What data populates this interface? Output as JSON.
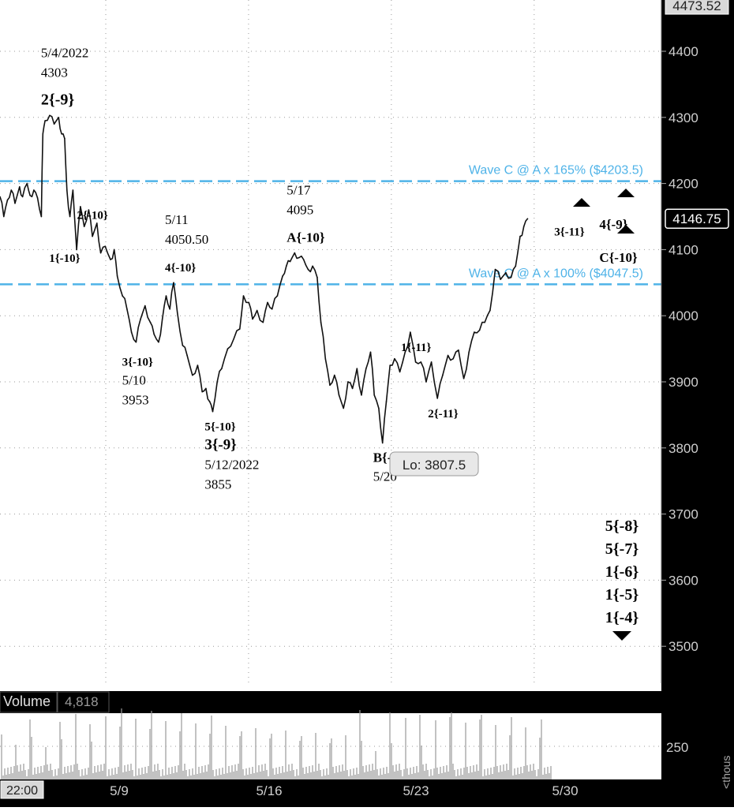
{
  "chart_data": {
    "type": "line",
    "y_axis": {
      "ticks": [
        4400,
        4300,
        4200,
        4100,
        4000,
        3900,
        3800,
        3700,
        3600,
        3500
      ],
      "top_readout": "4473.52",
      "last_price": "4146.75"
    },
    "x_axis": {
      "start_label": "22:00",
      "labels": [
        "5/9",
        "5/16",
        "5/23",
        "5/30"
      ]
    },
    "grid": true,
    "series": [
      {
        "points": [
          [
            0.0,
            4180
          ],
          [
            0.5,
            4150
          ],
          [
            1.0,
            4175
          ],
          [
            1.5,
            4190
          ],
          [
            2.0,
            4170
          ],
          [
            2.6,
            4195
          ],
          [
            3.0,
            4180
          ],
          [
            3.6,
            4200
          ],
          [
            4.0,
            4182
          ],
          [
            4.5,
            4190
          ],
          [
            5.0,
            4178
          ],
          [
            5.5,
            4150
          ],
          [
            5.7,
            4275
          ],
          [
            6.0,
            4295
          ],
          [
            6.6,
            4303
          ],
          [
            7.2,
            4290
          ],
          [
            7.8,
            4300
          ],
          [
            8.2,
            4275
          ],
          [
            8.6,
            4268
          ],
          [
            8.9,
            4190
          ],
          [
            9.3,
            4150
          ],
          [
            9.7,
            4190
          ],
          [
            10.2,
            4100
          ],
          [
            10.7,
            4165
          ],
          [
            11.2,
            4135
          ],
          [
            11.8,
            4160
          ],
          [
            12.3,
            4120
          ],
          [
            12.9,
            4140
          ],
          [
            13.4,
            4095
          ],
          [
            14.0,
            4105
          ],
          [
            14.7,
            4085
          ],
          [
            15.2,
            4100
          ],
          [
            15.6,
            4060
          ],
          [
            16.3,
            4030
          ],
          [
            16.9,
            4010
          ],
          [
            17.5,
            3975
          ],
          [
            18.1,
            3960
          ],
          [
            18.7,
            3995
          ],
          [
            19.3,
            4015
          ],
          [
            20.0,
            3990
          ],
          [
            20.5,
            3972
          ],
          [
            21.1,
            3960
          ],
          [
            21.6,
            3995
          ],
          [
            22.1,
            4030
          ],
          [
            22.6,
            4010
          ],
          [
            23.1,
            4050
          ],
          [
            23.6,
            4005
          ],
          [
            24.3,
            3955
          ],
          [
            24.9,
            3940
          ],
          [
            25.6,
            3910
          ],
          [
            26.3,
            3925
          ],
          [
            26.9,
            3885
          ],
          [
            27.4,
            3890
          ],
          [
            27.9,
            3870
          ],
          [
            28.3,
            3855
          ],
          [
            28.9,
            3900
          ],
          [
            29.5,
            3920
          ],
          [
            30.3,
            3950
          ],
          [
            31.1,
            3965
          ],
          [
            31.9,
            3980
          ],
          [
            32.4,
            4030
          ],
          [
            33.1,
            4020
          ],
          [
            33.6,
            3995
          ],
          [
            34.2,
            4008
          ],
          [
            35.0,
            3990
          ],
          [
            35.6,
            4020
          ],
          [
            36.2,
            4010
          ],
          [
            36.9,
            4030
          ],
          [
            37.6,
            4060
          ],
          [
            38.1,
            4075
          ],
          [
            38.6,
            4082
          ],
          [
            39.2,
            4095
          ],
          [
            39.8,
            4088
          ],
          [
            40.4,
            4085
          ],
          [
            41.0,
            4070
          ],
          [
            41.6,
            4075
          ],
          [
            42.2,
            4058
          ],
          [
            42.7,
            3990
          ],
          [
            43.3,
            3935
          ],
          [
            43.9,
            3895
          ],
          [
            44.5,
            3910
          ],
          [
            45.1,
            3880
          ],
          [
            45.7,
            3860
          ],
          [
            46.3,
            3900
          ],
          [
            46.9,
            3890
          ],
          [
            47.5,
            3920
          ],
          [
            48.1,
            3880
          ],
          [
            48.7,
            3920
          ],
          [
            49.3,
            3945
          ],
          [
            49.8,
            3880
          ],
          [
            50.4,
            3860
          ],
          [
            50.9,
            3807.5
          ],
          [
            51.4,
            3870
          ],
          [
            51.9,
            3925
          ],
          [
            52.5,
            3935
          ],
          [
            53.2,
            3915
          ],
          [
            53.9,
            3945
          ],
          [
            54.6,
            3975
          ],
          [
            55.3,
            3930
          ],
          [
            56.0,
            3930
          ],
          [
            56.7,
            3900
          ],
          [
            57.4,
            3930
          ],
          [
            58.2,
            3875
          ],
          [
            58.9,
            3910
          ],
          [
            59.6,
            3940
          ],
          [
            60.3,
            3935
          ],
          [
            61.0,
            3948
          ],
          [
            61.7,
            3905
          ],
          [
            62.4,
            3945
          ],
          [
            63.1,
            3975
          ],
          [
            63.8,
            3978
          ],
          [
            64.5,
            3990
          ],
          [
            65.2,
            4008
          ],
          [
            65.9,
            4070
          ],
          [
            66.6,
            4055
          ],
          [
            67.3,
            4065
          ],
          [
            68.0,
            4058
          ],
          [
            68.6,
            4075
          ],
          [
            69.2,
            4120
          ],
          [
            69.7,
            4135
          ],
          [
            70.2,
            4146.75
          ]
        ]
      }
    ],
    "reference_lines": [
      {
        "label": "Wave C @ A x 165% ($4203.5)",
        "value": 4203.5,
        "color": "#4fb3e8"
      },
      {
        "label": "Wave C @ A x 100% ($4047.5)",
        "value": 4047.5,
        "color": "#4fb3e8"
      }
    ],
    "annotations": [
      {
        "lines": [
          "5/4/2022",
          "4303"
        ],
        "bold": "2{-9}",
        "bold_size": "large",
        "x": 6.5,
        "y": 4303
      },
      {
        "lines": [],
        "bold": "2{-10}",
        "bold_size": "small",
        "x": 11.5,
        "y": 4175
      },
      {
        "lines": [],
        "bold": "1{-10}",
        "bold_size": "small",
        "x": 7.8,
        "y": 4110
      },
      {
        "lines": [
          "5/11",
          "4050.50"
        ],
        "bold": "4{-10}",
        "bold_size": "small",
        "x": 23.0,
        "y": 4050.5
      },
      {
        "lines": [
          "5/10",
          "3953"
        ],
        "bold": "3{-10}",
        "bold_size": "small",
        "x": 17.5,
        "y": 3953
      },
      {
        "lines": [
          "3{-9}",
          "5/12/2022",
          "3855"
        ],
        "bold": "5{-10}",
        "bold_size": "small",
        "x": 28.5,
        "y": 3855
      },
      {
        "lines": [
          "5/17",
          "4095"
        ],
        "bold": "A{-10}",
        "bold_size": "medium",
        "x": 39.2,
        "y": 4095
      },
      {
        "lines": [],
        "bold": "1{-11}",
        "bold_size": "small",
        "x": 54.6,
        "y": 3975
      },
      {
        "lines": [],
        "bold": "2{-11}",
        "bold_size": "small",
        "x": 58.2,
        "y": 3875
      },
      {
        "lines": [
          "5/20"
        ],
        "bold": "B{-10}",
        "bold_size": "medium",
        "x": 50.9,
        "y": 3807.5
      },
      {
        "lines": [],
        "bold": "3{-11}",
        "bold_size": "small",
        "x": 75.0,
        "y": 4150
      },
      {
        "lines": [],
        "bold": "4{-9}",
        "bold_size": "medium",
        "x": 81.0,
        "y": 4160
      },
      {
        "lines": [],
        "bold": "C{-10}",
        "bold_size": "medium",
        "x": 81.0,
        "y": 4110
      }
    ],
    "low_label": "Lo: 3807.5",
    "degree_stack": [
      "5{-8}",
      "5{-7}",
      "1{-6}",
      "1{-5}",
      "1{-4}"
    ],
    "volume": {
      "label": "Volume",
      "value": "4,818",
      "tick": "250",
      "unit_label": "<thous"
    }
  }
}
